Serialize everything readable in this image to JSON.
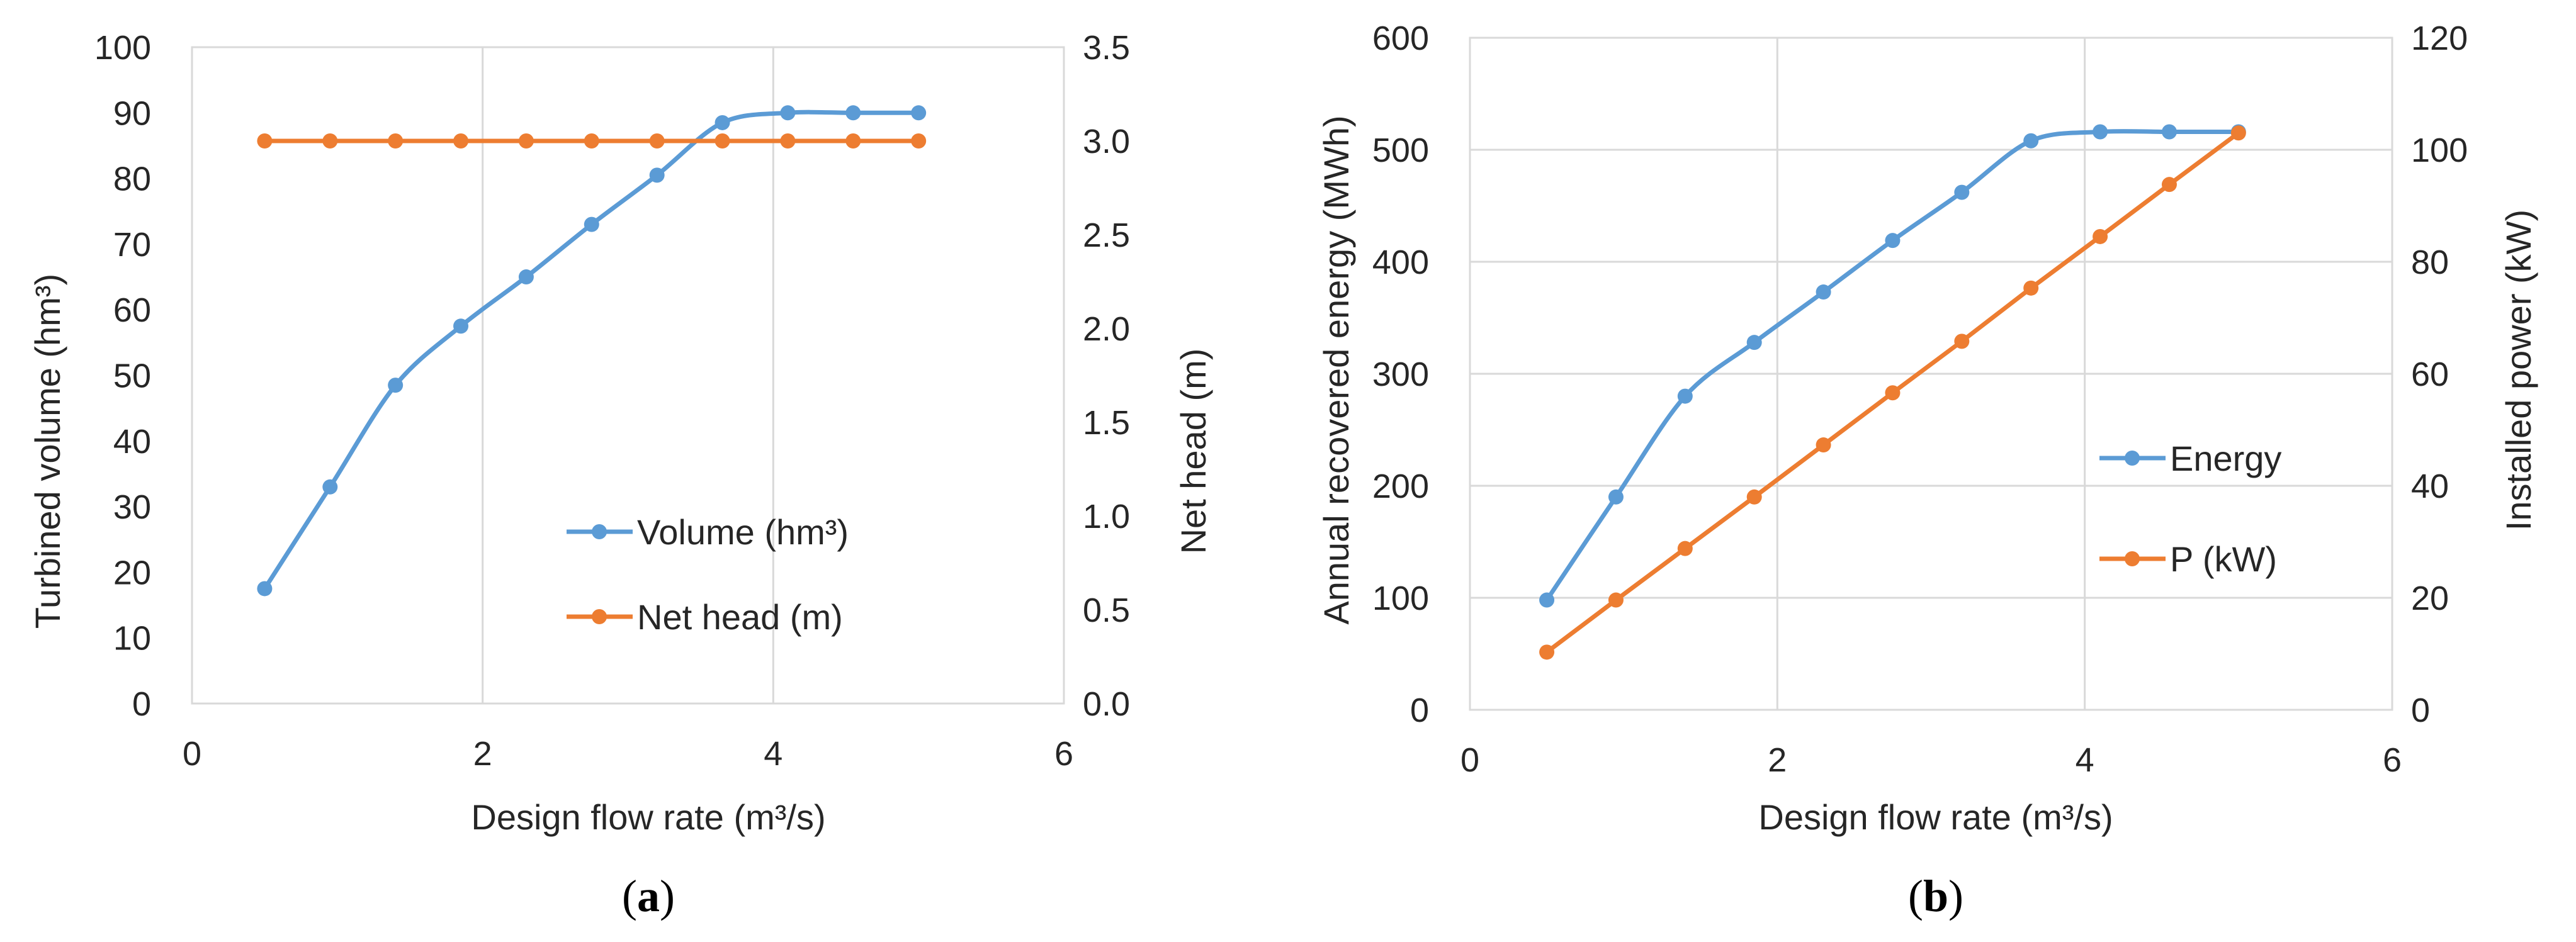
{
  "colors": {
    "series_blue": "#5b9bd5",
    "series_orange": "#ed7d31",
    "grid": "#d9d9d9",
    "text": "#262626"
  },
  "chart_data": [
    {
      "type": "line",
      "panel_label": "(a)",
      "panel_letter": "a",
      "xlabel": "Design flow rate (m³/s)",
      "ylabel_left": "Turbined volume (hm³)",
      "ylabel_right": "Net head (m)",
      "xlim": [
        0,
        6
      ],
      "ylim_left": [
        0,
        100
      ],
      "ylim_right": [
        0,
        3.5
      ],
      "x_ticks": [
        "0",
        "2",
        "4",
        "6"
      ],
      "y_left_ticks": [
        "0",
        "10",
        "20",
        "30",
        "40",
        "50",
        "60",
        "70",
        "80",
        "90",
        "100"
      ],
      "y_right_ticks": [
        "0.0",
        "0.5",
        "1.0",
        "1.5",
        "2.0",
        "2.5",
        "3.0",
        "3.5"
      ],
      "grid": "vertical",
      "legend_position": "center-right",
      "series": [
        {
          "name": "Volume (hm³)",
          "axis": "left",
          "color": "#5b9bd5",
          "smooth": true,
          "x": [
            0.5,
            0.95,
            1.4,
            1.85,
            2.3,
            2.75,
            3.2,
            3.65,
            4.1,
            4.55,
            5.0
          ],
          "y": [
            17.5,
            33,
            48.5,
            57.5,
            65,
            73,
            80.5,
            88.5,
            90,
            90,
            90
          ]
        },
        {
          "name": "Net head (m)",
          "axis": "right",
          "color": "#ed7d31",
          "smooth": false,
          "x": [
            0.5,
            0.95,
            1.4,
            1.85,
            2.3,
            2.75,
            3.2,
            3.65,
            4.1,
            4.55,
            5.0
          ],
          "y": [
            3.0,
            3.0,
            3.0,
            3.0,
            3.0,
            3.0,
            3.0,
            3.0,
            3.0,
            3.0,
            3.0
          ]
        }
      ]
    },
    {
      "type": "line",
      "panel_label": "(b)",
      "panel_letter": "b",
      "xlabel": "Design flow rate (m³/s)",
      "ylabel_left": "Annual recovered energy (MWh)",
      "ylabel_right": "Installed power (kW)",
      "xlim": [
        0,
        6
      ],
      "ylim_left": [
        0,
        600
      ],
      "ylim_right": [
        0,
        120
      ],
      "x_ticks": [
        "0",
        "2",
        "4",
        "6"
      ],
      "y_left_ticks": [
        "0",
        "100",
        "200",
        "300",
        "400",
        "500",
        "600"
      ],
      "y_right_ticks": [
        "0",
        "20",
        "40",
        "60",
        "80",
        "100",
        "120"
      ],
      "grid": "both",
      "legend_position": "center-right",
      "series": [
        {
          "name": "Energy",
          "axis": "left",
          "color": "#5b9bd5",
          "smooth": true,
          "x": [
            0.5,
            0.95,
            1.4,
            1.85,
            2.3,
            2.75,
            3.2,
            3.65,
            4.1,
            4.55,
            5.0
          ],
          "y": [
            98,
            190,
            280,
            328,
            373,
            419,
            462,
            508,
            516,
            516,
            516
          ]
        },
        {
          "name": "P (kW)",
          "axis": "right",
          "color": "#ed7d31",
          "smooth": false,
          "x": [
            0.5,
            0.95,
            1.4,
            1.85,
            2.3,
            2.75,
            3.2,
            3.65,
            4.1,
            4.55,
            5.0
          ],
          "y": [
            10.3,
            19.6,
            28.8,
            38.0,
            47.3,
            56.6,
            65.8,
            75.3,
            84.5,
            93.8,
            103.0
          ]
        }
      ]
    }
  ]
}
